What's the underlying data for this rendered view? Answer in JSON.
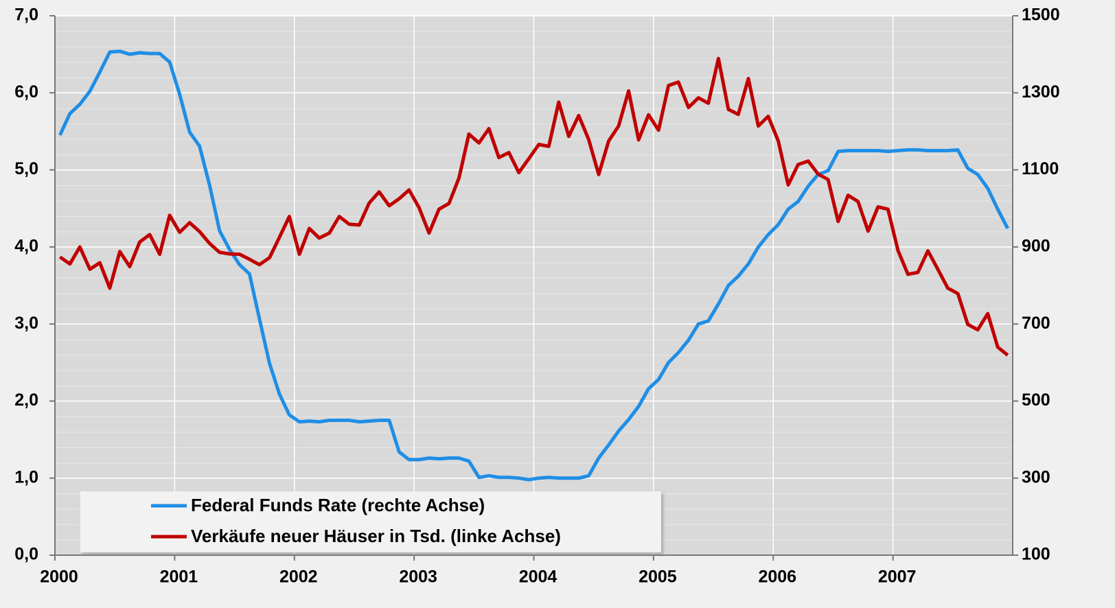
{
  "chart_data": {
    "type": "line",
    "x": [
      2000.042,
      2000.125,
      2000.208,
      2000.292,
      2000.375,
      2000.458,
      2000.542,
      2000.625,
      2000.708,
      2000.792,
      2000.875,
      2000.958,
      2001.042,
      2001.125,
      2001.208,
      2001.292,
      2001.375,
      2001.458,
      2001.542,
      2001.625,
      2001.708,
      2001.792,
      2001.875,
      2001.958,
      2002.042,
      2002.125,
      2002.208,
      2002.292,
      2002.375,
      2002.458,
      2002.542,
      2002.625,
      2002.708,
      2002.792,
      2002.875,
      2002.958,
      2003.042,
      2003.125,
      2003.208,
      2003.292,
      2003.375,
      2003.458,
      2003.542,
      2003.625,
      2003.708,
      2003.792,
      2003.875,
      2003.958,
      2004.042,
      2004.125,
      2004.208,
      2004.292,
      2004.375,
      2004.458,
      2004.542,
      2004.625,
      2004.708,
      2004.792,
      2004.875,
      2004.958,
      2005.042,
      2005.125,
      2005.208,
      2005.292,
      2005.375,
      2005.458,
      2005.542,
      2005.625,
      2005.708,
      2005.792,
      2005.875,
      2005.958,
      2006.042,
      2006.125,
      2006.208,
      2006.292,
      2006.375,
      2006.458,
      2006.542,
      2006.625,
      2006.708,
      2006.792,
      2006.875,
      2006.958,
      2007.042,
      2007.125,
      2007.208,
      2007.292,
      2007.375,
      2007.458,
      2007.542,
      2007.625,
      2007.708,
      2007.792,
      2007.875,
      2007.958
    ],
    "xlim": [
      2000,
      2008
    ],
    "xticks": [
      2000,
      2001,
      2002,
      2003,
      2004,
      2005,
      2006,
      2007
    ],
    "ylim": [
      0,
      7
    ],
    "yticks": [
      {
        "value": 0,
        "label": "0,0"
      },
      {
        "value": 1,
        "label": "1,0"
      },
      {
        "value": 2,
        "label": "2,0"
      },
      {
        "value": 3,
        "label": "3,0"
      },
      {
        "value": 4,
        "label": "4,0"
      },
      {
        "value": 5,
        "label": "5,0"
      },
      {
        "value": 6,
        "label": "6,0"
      },
      {
        "value": 7,
        "label": "7,0"
      }
    ],
    "y2lim": [
      100,
      1500
    ],
    "y2ticks": [
      100,
      300,
      500,
      700,
      900,
      1100,
      1300,
      1500
    ],
    "grid": true,
    "series": [
      {
        "name": "Federal Funds Rate (rechte Achse)",
        "color": "#1f8ee6",
        "axis": "y",
        "values": [
          5.45,
          5.73,
          5.85,
          6.02,
          6.27,
          6.53,
          6.54,
          6.5,
          6.52,
          6.51,
          6.51,
          6.4,
          5.98,
          5.49,
          5.31,
          4.8,
          4.21,
          3.97,
          3.77,
          3.65,
          3.07,
          2.49,
          2.09,
          1.82,
          1.73,
          1.74,
          1.73,
          1.75,
          1.75,
          1.75,
          1.73,
          1.74,
          1.75,
          1.75,
          1.34,
          1.24,
          1.24,
          1.26,
          1.25,
          1.26,
          1.26,
          1.22,
          1.01,
          1.03,
          1.01,
          1.01,
          1.0,
          0.98,
          1.0,
          1.01,
          1.0,
          1.0,
          1.0,
          1.03,
          1.26,
          1.43,
          1.61,
          1.76,
          1.93,
          2.16,
          2.28,
          2.5,
          2.63,
          2.79,
          3.0,
          3.04,
          3.26,
          3.5,
          3.62,
          3.78,
          4.0,
          4.16,
          4.29,
          4.49,
          4.59,
          4.79,
          4.94,
          4.99,
          5.24,
          5.25,
          5.25,
          5.25,
          5.25,
          5.24,
          5.25,
          5.26,
          5.26,
          5.25,
          5.25,
          5.25,
          5.26,
          5.02,
          4.94,
          4.76,
          4.49,
          4.24
        ]
      },
      {
        "name": "Verkäufe neuer Häuser in Tsd. (linke Achse)",
        "color": "#c00000",
        "axis": "y2",
        "values": [
          874,
          856,
          900,
          842,
          859,
          793,
          888,
          849,
          913,
          932,
          881,
          982,
          938,
          963,
          940,
          909,
          886,
          882,
          881,
          868,
          854,
          872,
          925,
          979,
          881,
          948,
          923,
          936,
          979,
          959,
          957,
          1014,
          1043,
          1007,
          1025,
          1048,
          1002,
          936,
          998,
          1013,
          1079,
          1193,
          1170,
          1207,
          1132,
          1145,
          1093,
          1129,
          1166,
          1161,
          1276,
          1187,
          1241,
          1179,
          1088,
          1175,
          1214,
          1305,
          1178,
          1243,
          1203,
          1319,
          1328,
          1262,
          1287,
          1273,
          1389,
          1257,
          1244,
          1337,
          1214,
          1239,
          1175,
          1061,
          1114,
          1123,
          1089,
          1075,
          966,
          1034,
          1018,
          941,
          1004,
          998,
          891,
          829,
          834,
          890,
          842,
          793,
          779,
          699,
          685,
          727,
          640,
          619
        ]
      }
    ]
  }
}
